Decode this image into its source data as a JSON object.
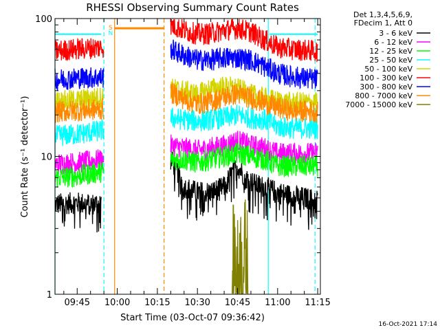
{
  "chart_data": {
    "type": "line",
    "title": "RHESSI Observing Summary Count Rates",
    "xlabel": "Start Time (03-Oct-07 09:36:42)",
    "ylabel": "Count Rate (s⁻¹ detector⁻¹)",
    "yscale": "log",
    "ylim": [
      1,
      100
    ],
    "xlim": [
      "09:36:42",
      "11:16:00"
    ],
    "x_ticks": [
      "09:45",
      "10:00",
      "10:15",
      "10:30",
      "10:45",
      "11:00",
      "11:15"
    ],
    "y_ticks": [
      "1",
      "10",
      "100"
    ],
    "legend": {
      "placement": "right",
      "header_lines": [
        "Det 1,3,4,5,6,9,",
        "FDecim 1, Att 0"
      ],
      "entries": [
        {
          "label": "3 - 6 keV",
          "color": "#000000"
        },
        {
          "label": "6 - 12 keV",
          "color": "#ff00ff"
        },
        {
          "label": "12 - 25 keV",
          "color": "#00ff00"
        },
        {
          "label": "25 - 50 keV",
          "color": "#00ffff"
        },
        {
          "label": "50 - 100 keV",
          "color": "#d4d400"
        },
        {
          "label": "100 - 300 keV",
          "color": "#ff0000"
        },
        {
          "label": "300 - 800 keV",
          "color": "#0000ff"
        },
        {
          "label": "800 - 7000 keV",
          "color": "#ff8800"
        },
        {
          "label": "7000 - 15000 keV",
          "color": "#808000"
        }
      ]
    },
    "annotations": [
      {
        "text": "S",
        "color": "#ff8800"
      },
      {
        "text": "N",
        "color": "#00ffff"
      }
    ],
    "vertical_markers": [
      {
        "time": "09:36:42",
        "color": "#00ffff",
        "style": "solid"
      },
      {
        "time": "09:55:00",
        "color": "#00ffff",
        "style": "dashed"
      },
      {
        "time": "09:59:00",
        "color": "#ff8800",
        "style": "solid"
      },
      {
        "time": "10:17:30",
        "color": "#ff8800",
        "style": "dashed"
      },
      {
        "time": "10:56:30",
        "color": "#00ffff",
        "style": "solid"
      },
      {
        "time": "11:14:00",
        "color": "#00ffff",
        "style": "dashed"
      }
    ],
    "saa_level": {
      "time_range": [
        "09:59:00",
        "10:17:30"
      ],
      "value": 85,
      "color": "#ff8800"
    },
    "night_level": {
      "time_ranges": [
        [
          "09:36:42",
          "09:54:00"
        ],
        [
          "10:57:00",
          "11:15:00"
        ]
      ],
      "value": 77,
      "color": "#00ffff"
    },
    "series": [
      {
        "name": "3 - 6 keV",
        "color": "#000000",
        "segments": [
          {
            "t": [
              "09:36:42",
              "09:45",
              "09:50",
              "09:54"
            ],
            "y": [
              4.5,
              4.6,
              4.5,
              4.6
            ]
          },
          {
            "t": [
              "10:20",
              "10:25",
              "10:30",
              "10:35",
              "10:40",
              "10:43",
              "10:45",
              "10:48",
              "10:52",
              "10:55",
              "11:00",
              "11:05",
              "11:10",
              "11:15"
            ],
            "y": [
              9.5,
              6.0,
              5.5,
              5.5,
              6.0,
              7.5,
              8.5,
              7.0,
              6.2,
              6.0,
              5.5,
              5.2,
              5.0,
              4.8
            ]
          }
        ]
      },
      {
        "name": "6 - 12 keV",
        "color": "#ff00ff",
        "segments": [
          {
            "t": [
              "09:36:42",
              "09:45",
              "09:55"
            ],
            "y": [
              8.8,
              9.0,
              9.5
            ]
          },
          {
            "t": [
              "10:20",
              "10:25",
              "10:30",
              "10:35",
              "10:40",
              "10:45",
              "10:50",
              "10:55",
              "11:00",
              "11:05",
              "11:15"
            ],
            "y": [
              12.0,
              11.5,
              11.0,
              11.5,
              12.0,
              13.0,
              12.0,
              11.5,
              10.5,
              10.5,
              10.5
            ]
          }
        ]
      },
      {
        "name": "12 - 25 keV",
        "color": "#00ff00",
        "segments": [
          {
            "t": [
              "09:36:42",
              "09:45",
              "09:55"
            ],
            "y": [
              7.0,
              7.2,
              7.8
            ]
          },
          {
            "t": [
              "10:20",
              "10:25",
              "10:30",
              "10:35",
              "10:40",
              "10:45",
              "10:50",
              "10:55",
              "11:00",
              "11:05",
              "11:15"
            ],
            "y": [
              9.5,
              9.5,
              9.0,
              9.5,
              10.0,
              10.5,
              10.0,
              9.5,
              8.5,
              8.5,
              8.5
            ]
          }
        ]
      },
      {
        "name": "25 - 50 keV",
        "color": "#00ffff",
        "segments": [
          {
            "t": [
              "09:36:42",
              "09:45",
              "09:55"
            ],
            "y": [
              14.0,
              14.5,
              15.5
            ]
          },
          {
            "t": [
              "10:20",
              "10:25",
              "10:30",
              "10:35",
              "10:40",
              "10:45",
              "10:50",
              "10:55",
              "11:00",
              "11:05",
              "11:15"
            ],
            "y": [
              19.0,
              18.5,
              18.0,
              18.5,
              19.0,
              20.0,
              19.0,
              18.5,
              16.5,
              16.0,
              16.0
            ]
          }
        ]
      },
      {
        "name": "50 - 100 keV",
        "color": "#d4d400",
        "segments": [
          {
            "t": [
              "09:36:42",
              "09:45",
              "09:55"
            ],
            "y": [
              25.0,
              25.5,
              27.0
            ]
          },
          {
            "t": [
              "10:20",
              "10:25",
              "10:30",
              "10:35",
              "10:40",
              "10:45",
              "10:50",
              "10:55",
              "11:00",
              "11:05",
              "11:15"
            ],
            "y": [
              31.0,
              30.0,
              28.0,
              31.0,
              32.0,
              31.0,
              28.0,
              26.5,
              25.0,
              24.5,
              24.5
            ]
          }
        ]
      },
      {
        "name": "100 - 300 keV",
        "color": "#ff0000",
        "segments": [
          {
            "t": [
              "09:36:42",
              "09:45",
              "09:55"
            ],
            "y": [
              58.0,
              60.0,
              62.0
            ]
          },
          {
            "t": [
              "10:20",
              "10:25",
              "10:30",
              "10:35",
              "10:40",
              "10:45",
              "10:50",
              "10:55",
              "11:00",
              "11:05",
              "11:15"
            ],
            "y": [
              90.0,
              82.0,
              77.0,
              78.0,
              82.0,
              85.0,
              80.0,
              70.0,
              62.0,
              60.0,
              58.0
            ]
          }
        ]
      },
      {
        "name": "300 - 800 keV",
        "color": "#0000ff",
        "segments": [
          {
            "t": [
              "09:36:42",
              "09:45",
              "09:55"
            ],
            "y": [
              36.0,
              37.0,
              37.5
            ]
          },
          {
            "t": [
              "10:20",
              "10:25",
              "10:30",
              "10:35",
              "10:40",
              "10:45",
              "10:50",
              "10:55",
              "11:00",
              "11:05",
              "11:15"
            ],
            "y": [
              60.0,
              54.0,
              50.0,
              50.0,
              52.0,
              52.0,
              50.0,
              45.0,
              40.0,
              38.0,
              36.0
            ]
          }
        ]
      },
      {
        "name": "800 - 7000 keV",
        "color": "#ff8800",
        "segments": [
          {
            "t": [
              "09:36:42",
              "09:45",
              "09:55"
            ],
            "y": [
              21.0,
              21.5,
              22.0
            ]
          },
          {
            "t": [
              "10:20",
              "10:25",
              "10:30",
              "10:35",
              "10:40",
              "10:45",
              "10:50",
              "10:55",
              "11:00",
              "11:05",
              "11:15"
            ],
            "y": [
              29.0,
              26.0,
              24.0,
              25.0,
              27.0,
              28.5,
              26.5,
              24.5,
              22.5,
              21.5,
              21.0
            ]
          }
        ]
      },
      {
        "name": "7000 - 15000 keV",
        "color": "#808000",
        "segments": [
          {
            "t": [
              "10:43",
              "10:44",
              "10:45",
              "10:46",
              "10:47",
              "10:48",
              "10:49"
            ],
            "y": [
              1.4,
              1.9,
              1.3,
              1.8,
              1.5,
              1.9,
              1.4
            ]
          }
        ]
      }
    ]
  },
  "footer": {
    "timestamp": "16-Oct-2021 17:14"
  }
}
